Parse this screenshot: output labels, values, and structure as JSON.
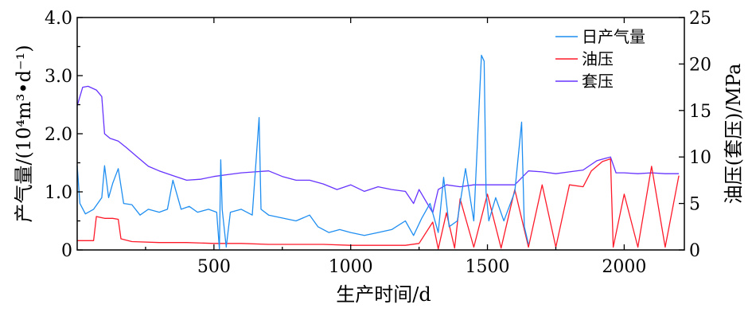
{
  "chart_data": {
    "type": "line",
    "xlabel": "生产时间/d",
    "ylabel_left": "产气量/(10⁴m³•d⁻¹)",
    "ylabel_right": "油压(套压)/MPa",
    "xlim": [
      0,
      2220
    ],
    "ylim_left": [
      0,
      4.0
    ],
    "ylim_right": [
      0,
      25
    ],
    "x_ticks": [
      "500",
      "1000",
      "1500",
      "2000"
    ],
    "y_left_ticks": [
      "0",
      "1.0",
      "2.0",
      "3.0",
      "4.0"
    ],
    "y_right_ticks": [
      "0",
      "5",
      "10",
      "15",
      "20",
      "25"
    ],
    "legend_position": "top-right",
    "grid": false,
    "series": [
      {
        "name": "日产气量",
        "axis": "left",
        "color": "#1f8ef1",
        "points": [
          [
            0,
            1.45
          ],
          [
            10,
            0.8
          ],
          [
            30,
            0.62
          ],
          [
            60,
            0.7
          ],
          [
            90,
            0.9
          ],
          [
            100,
            1.45
          ],
          [
            115,
            0.9
          ],
          [
            130,
            1.15
          ],
          [
            150,
            1.4
          ],
          [
            170,
            0.8
          ],
          [
            200,
            0.78
          ],
          [
            230,
            0.6
          ],
          [
            260,
            0.7
          ],
          [
            300,
            0.65
          ],
          [
            330,
            0.7
          ],
          [
            350,
            1.2
          ],
          [
            380,
            0.7
          ],
          [
            410,
            0.75
          ],
          [
            440,
            0.65
          ],
          [
            480,
            0.7
          ],
          [
            510,
            0.65
          ],
          [
            520,
            0.02
          ],
          [
            525,
            1.55
          ],
          [
            530,
            0.7
          ],
          [
            545,
            0.05
          ],
          [
            560,
            0.65
          ],
          [
            600,
            0.7
          ],
          [
            640,
            0.6
          ],
          [
            665,
            2.28
          ],
          [
            672,
            0.7
          ],
          [
            700,
            0.6
          ],
          [
            750,
            0.55
          ],
          [
            800,
            0.5
          ],
          [
            850,
            0.6
          ],
          [
            880,
            0.4
          ],
          [
            920,
            0.3
          ],
          [
            960,
            0.35
          ],
          [
            1000,
            0.3
          ],
          [
            1050,
            0.25
          ],
          [
            1100,
            0.3
          ],
          [
            1150,
            0.35
          ],
          [
            1200,
            0.5
          ],
          [
            1230,
            0.25
          ],
          [
            1260,
            0.55
          ],
          [
            1290,
            0.8
          ],
          [
            1320,
            0.3
          ],
          [
            1340,
            1.25
          ],
          [
            1360,
            0.4
          ],
          [
            1390,
            0.5
          ],
          [
            1420,
            1.4
          ],
          [
            1450,
            0.5
          ],
          [
            1478,
            3.35
          ],
          [
            1488,
            3.25
          ],
          [
            1495,
            1.0
          ],
          [
            1505,
            0.5
          ],
          [
            1530,
            0.9
          ],
          [
            1560,
            0.5
          ],
          [
            1600,
            1.0
          ],
          [
            1625,
            2.2
          ],
          [
            1635,
            0.4
          ],
          [
            1650,
            0.1
          ]
        ]
      },
      {
        "name": "油压",
        "axis": "right",
        "color": "#ff1a2a",
        "points": [
          [
            0,
            1.0
          ],
          [
            60,
            1.0
          ],
          [
            70,
            3.6
          ],
          [
            100,
            3.4
          ],
          [
            130,
            3.4
          ],
          [
            150,
            3.3
          ],
          [
            160,
            1.2
          ],
          [
            200,
            0.9
          ],
          [
            300,
            0.8
          ],
          [
            400,
            0.8
          ],
          [
            500,
            0.7
          ],
          [
            600,
            0.7
          ],
          [
            700,
            0.6
          ],
          [
            800,
            0.6
          ],
          [
            900,
            0.6
          ],
          [
            1000,
            0.5
          ],
          [
            1100,
            0.5
          ],
          [
            1200,
            0.5
          ],
          [
            1250,
            0.7
          ],
          [
            1300,
            3.0
          ],
          [
            1320,
            0.1
          ],
          [
            1350,
            4.0
          ],
          [
            1380,
            0.2
          ],
          [
            1400,
            5.5
          ],
          [
            1450,
            0.3
          ],
          [
            1500,
            6.0
          ],
          [
            1550,
            0.2
          ],
          [
            1600,
            6.5
          ],
          [
            1650,
            0.3
          ],
          [
            1700,
            7.0
          ],
          [
            1750,
            0.3
          ],
          [
            1800,
            7.0
          ],
          [
            1850,
            6.8
          ],
          [
            1880,
            8.5
          ],
          [
            1920,
            9.5
          ],
          [
            1950,
            9.8
          ],
          [
            1960,
            0.3
          ],
          [
            2000,
            6.0
          ],
          [
            2050,
            0.3
          ],
          [
            2100,
            9.0
          ],
          [
            2150,
            0.3
          ],
          [
            2200,
            8.0
          ]
        ]
      },
      {
        "name": "套压",
        "axis": "right",
        "color": "#6633ff",
        "points": [
          [
            0,
            15.5
          ],
          [
            20,
            17.5
          ],
          [
            40,
            17.6
          ],
          [
            70,
            17.2
          ],
          [
            90,
            16.5
          ],
          [
            100,
            12.5
          ],
          [
            120,
            12.0
          ],
          [
            150,
            11.7
          ],
          [
            180,
            11.0
          ],
          [
            220,
            10.0
          ],
          [
            260,
            9.0
          ],
          [
            300,
            8.5
          ],
          [
            350,
            8.0
          ],
          [
            400,
            7.5
          ],
          [
            450,
            7.6
          ],
          [
            500,
            7.9
          ],
          [
            550,
            8.1
          ],
          [
            600,
            8.3
          ],
          [
            650,
            8.4
          ],
          [
            700,
            8.5
          ],
          [
            750,
            7.9
          ],
          [
            800,
            7.5
          ],
          [
            850,
            7.5
          ],
          [
            900,
            7.1
          ],
          [
            950,
            6.5
          ],
          [
            1000,
            7.0
          ],
          [
            1050,
            6.3
          ],
          [
            1100,
            6.8
          ],
          [
            1150,
            6.5
          ],
          [
            1200,
            6.3
          ],
          [
            1230,
            5.0
          ],
          [
            1250,
            6.5
          ],
          [
            1300,
            4.0
          ],
          [
            1320,
            6.5
          ],
          [
            1350,
            7.0
          ],
          [
            1400,
            6.8
          ],
          [
            1450,
            7.0
          ],
          [
            1500,
            7.0
          ],
          [
            1550,
            7.0
          ],
          [
            1600,
            7.0
          ],
          [
            1650,
            8.5
          ],
          [
            1700,
            8.4
          ],
          [
            1750,
            8.2
          ],
          [
            1800,
            8.4
          ],
          [
            1850,
            8.6
          ],
          [
            1870,
            9.0
          ],
          [
            1900,
            9.6
          ],
          [
            1950,
            10.0
          ],
          [
            1970,
            8.3
          ],
          [
            2000,
            8.3
          ],
          [
            2050,
            8.2
          ],
          [
            2100,
            8.3
          ],
          [
            2150,
            8.2
          ],
          [
            2200,
            8.2
          ]
        ]
      }
    ]
  },
  "colors": {
    "gas": "#1f8ef1",
    "tubing": "#ff1a2a",
    "casing": "#6633ff",
    "axis": "#000000"
  }
}
